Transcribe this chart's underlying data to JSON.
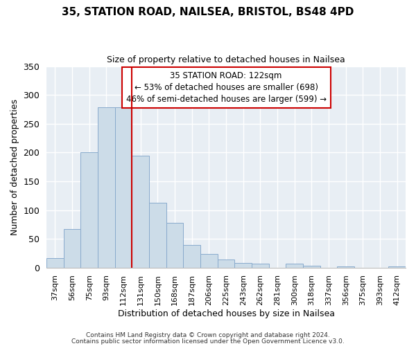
{
  "title": "35, STATION ROAD, NAILSEA, BRISTOL, BS48 4PD",
  "subtitle": "Size of property relative to detached houses in Nailsea",
  "xlabel": "Distribution of detached houses by size in Nailsea",
  "ylabel": "Number of detached properties",
  "bar_labels": [
    "37sqm",
    "56sqm",
    "75sqm",
    "93sqm",
    "112sqm",
    "131sqm",
    "150sqm",
    "168sqm",
    "187sqm",
    "206sqm",
    "225sqm",
    "243sqm",
    "262sqm",
    "281sqm",
    "300sqm",
    "318sqm",
    "337sqm",
    "356sqm",
    "375sqm",
    "393sqm",
    "412sqm"
  ],
  "bar_values": [
    17,
    67,
    200,
    278,
    278,
    195,
    113,
    78,
    39,
    24,
    14,
    8,
    7,
    0,
    7,
    3,
    0,
    2,
    0,
    0,
    2
  ],
  "bar_color": "#ccdce8",
  "bar_edge_color": "#88aacc",
  "vline_x": 4.5,
  "vline_color": "#cc0000",
  "ylim": [
    0,
    350
  ],
  "yticks": [
    0,
    50,
    100,
    150,
    200,
    250,
    300,
    350
  ],
  "annotation_title": "35 STATION ROAD: 122sqm",
  "annotation_line1": "← 53% of detached houses are smaller (698)",
  "annotation_line2": "46% of semi-detached houses are larger (599) →",
  "annotation_box_color": "#ffffff",
  "annotation_box_edge": "#cc0000",
  "footer_line1": "Contains HM Land Registry data © Crown copyright and database right 2024.",
  "footer_line2": "Contains public sector information licensed under the Open Government Licence v3.0.",
  "background_color": "#ffffff",
  "plot_background": "#e8eef4"
}
